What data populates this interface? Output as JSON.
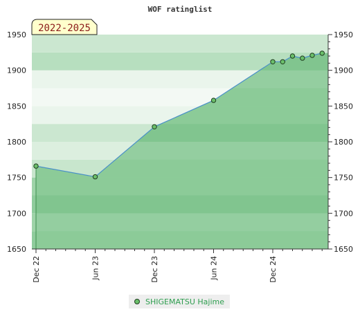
{
  "chart_data": {
    "type": "area",
    "title": "WOF ratinglist",
    "period_label": "2022-2025",
    "xlabel": "",
    "ylabel": "",
    "ylim": [
      1650,
      1950
    ],
    "yticks": [
      1650,
      1700,
      1750,
      1800,
      1850,
      1900,
      1950
    ],
    "xticks": [
      "Dec 22",
      "Jun 23",
      "Dec 23",
      "Jun 24",
      "Dec 24"
    ],
    "grid": true,
    "legend_position": "bottom",
    "series": [
      {
        "name": "SHIGEMATSU Hajime",
        "color": "#4a90c8",
        "marker_color": "#6bbf6b",
        "points": [
          {
            "x": "Dec 22",
            "y": 1766
          },
          {
            "x": "Jun 23",
            "y": 1751
          },
          {
            "x": "Dec 23",
            "y": 1821
          },
          {
            "x": "Jun 24",
            "y": 1858
          },
          {
            "x": "Dec 24",
            "y": 1912
          },
          {
            "x": "Jan 25",
            "y": 1912
          },
          {
            "x": "Feb 25",
            "y": 1920
          },
          {
            "x": "Mar 25",
            "y": 1917
          },
          {
            "x": "Apr 25",
            "y": 1921
          },
          {
            "x": "May 25",
            "y": 1924
          }
        ]
      }
    ]
  }
}
